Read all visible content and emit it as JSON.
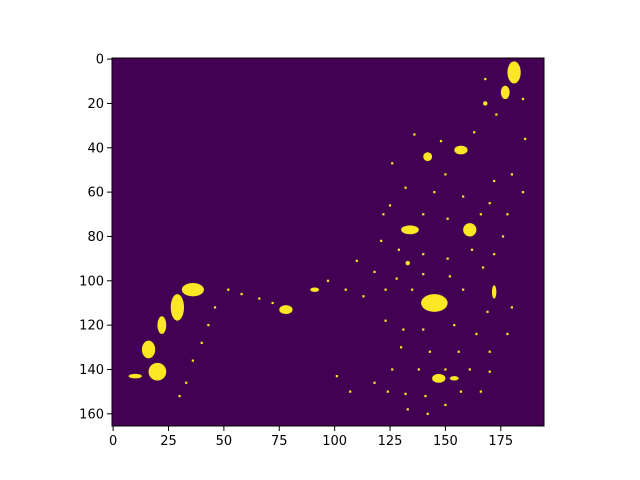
{
  "chart_data": {
    "type": "heatmap",
    "title": "",
    "xlabel": "",
    "ylabel": "",
    "width": 195,
    "height": 166,
    "xlim": [
      -0.5,
      194.5
    ],
    "ylim": [
      165.5,
      -0.5
    ],
    "y_axis_inverted": true,
    "colormap": "viridis",
    "binary_values": [
      0,
      1
    ],
    "background_color": "#440154",
    "foreground_color": "#fde725",
    "x_ticks": [
      0,
      25,
      50,
      75,
      100,
      125,
      150,
      175
    ],
    "x_tick_labels": [
      "0",
      "25",
      "50",
      "75",
      "100",
      "125",
      "150",
      "175"
    ],
    "y_ticks": [
      0,
      20,
      40,
      60,
      80,
      100,
      120,
      140,
      160
    ],
    "y_tick_labels": [
      "0",
      "20",
      "40",
      "60",
      "80",
      "100",
      "120",
      "140",
      "160"
    ],
    "grid": false,
    "legend": false,
    "approximate_blobs": [
      {
        "x": 181,
        "y": 6,
        "rx": 3,
        "ry": 5
      },
      {
        "x": 177,
        "y": 15,
        "rx": 2,
        "ry": 3
      },
      {
        "x": 168,
        "y": 20,
        "rx": 1,
        "ry": 1
      },
      {
        "x": 157,
        "y": 41,
        "rx": 3,
        "ry": 2
      },
      {
        "x": 142,
        "y": 44,
        "rx": 2,
        "ry": 2
      },
      {
        "x": 134,
        "y": 77,
        "rx": 4,
        "ry": 2
      },
      {
        "x": 161,
        "y": 77,
        "rx": 3,
        "ry": 3
      },
      {
        "x": 133,
        "y": 92,
        "rx": 1,
        "ry": 1
      },
      {
        "x": 145,
        "y": 110,
        "rx": 6,
        "ry": 4
      },
      {
        "x": 172,
        "y": 105,
        "rx": 1,
        "ry": 3
      },
      {
        "x": 78,
        "y": 113,
        "rx": 3,
        "ry": 2
      },
      {
        "x": 91,
        "y": 104,
        "rx": 2,
        "ry": 1
      },
      {
        "x": 36,
        "y": 104,
        "rx": 5,
        "ry": 3
      },
      {
        "x": 29,
        "y": 112,
        "rx": 3,
        "ry": 6
      },
      {
        "x": 22,
        "y": 120,
        "rx": 2,
        "ry": 4
      },
      {
        "x": 16,
        "y": 131,
        "rx": 3,
        "ry": 4
      },
      {
        "x": 20,
        "y": 141,
        "rx": 4,
        "ry": 4
      },
      {
        "x": 10,
        "y": 143,
        "rx": 3,
        "ry": 1
      },
      {
        "x": 147,
        "y": 144,
        "rx": 3,
        "ry": 2
      },
      {
        "x": 154,
        "y": 144,
        "rx": 2,
        "ry": 1
      }
    ],
    "approximate_sparse_pixels": [
      [
        168,
        9
      ],
      [
        185,
        18
      ],
      [
        173,
        25
      ],
      [
        163,
        33
      ],
      [
        148,
        37
      ],
      [
        186,
        36
      ],
      [
        136,
        34
      ],
      [
        126,
        47
      ],
      [
        150,
        52
      ],
      [
        172,
        55
      ],
      [
        180,
        52
      ],
      [
        125,
        66
      ],
      [
        132,
        58
      ],
      [
        145,
        60
      ],
      [
        158,
        62
      ],
      [
        170,
        65
      ],
      [
        178,
        70
      ],
      [
        185,
        60
      ],
      [
        122,
        70
      ],
      [
        140,
        70
      ],
      [
        151,
        72
      ],
      [
        166,
        70
      ],
      [
        176,
        80
      ],
      [
        121,
        82
      ],
      [
        129,
        86
      ],
      [
        140,
        88
      ],
      [
        151,
        90
      ],
      [
        162,
        86
      ],
      [
        172,
        88
      ],
      [
        110,
        91
      ],
      [
        118,
        96
      ],
      [
        128,
        99
      ],
      [
        140,
        97
      ],
      [
        152,
        98
      ],
      [
        167,
        94
      ],
      [
        97,
        100
      ],
      [
        105,
        104
      ],
      [
        113,
        107
      ],
      [
        123,
        104
      ],
      [
        135,
        104
      ],
      [
        158,
        104
      ],
      [
        169,
        114
      ],
      [
        180,
        112
      ],
      [
        123,
        118
      ],
      [
        131,
        122
      ],
      [
        140,
        122
      ],
      [
        154,
        120
      ],
      [
        164,
        124
      ],
      [
        130,
        130
      ],
      [
        143,
        132
      ],
      [
        156,
        132
      ],
      [
        170,
        132
      ],
      [
        178,
        124
      ],
      [
        126,
        140
      ],
      [
        138,
        140
      ],
      [
        150,
        140
      ],
      [
        161,
        140
      ],
      [
        170,
        141
      ],
      [
        101,
        143
      ],
      [
        107,
        150
      ],
      [
        118,
        146
      ],
      [
        124,
        150
      ],
      [
        132,
        151
      ],
      [
        141,
        152
      ],
      [
        157,
        150
      ],
      [
        166,
        150
      ],
      [
        133,
        158
      ],
      [
        142,
        160
      ],
      [
        150,
        156
      ],
      [
        52,
        104
      ],
      [
        58,
        106
      ],
      [
        66,
        108
      ],
      [
        72,
        110
      ],
      [
        46,
        112
      ],
      [
        43,
        120
      ],
      [
        40,
        128
      ],
      [
        36,
        136
      ],
      [
        33,
        146
      ],
      [
        30,
        152
      ]
    ]
  }
}
